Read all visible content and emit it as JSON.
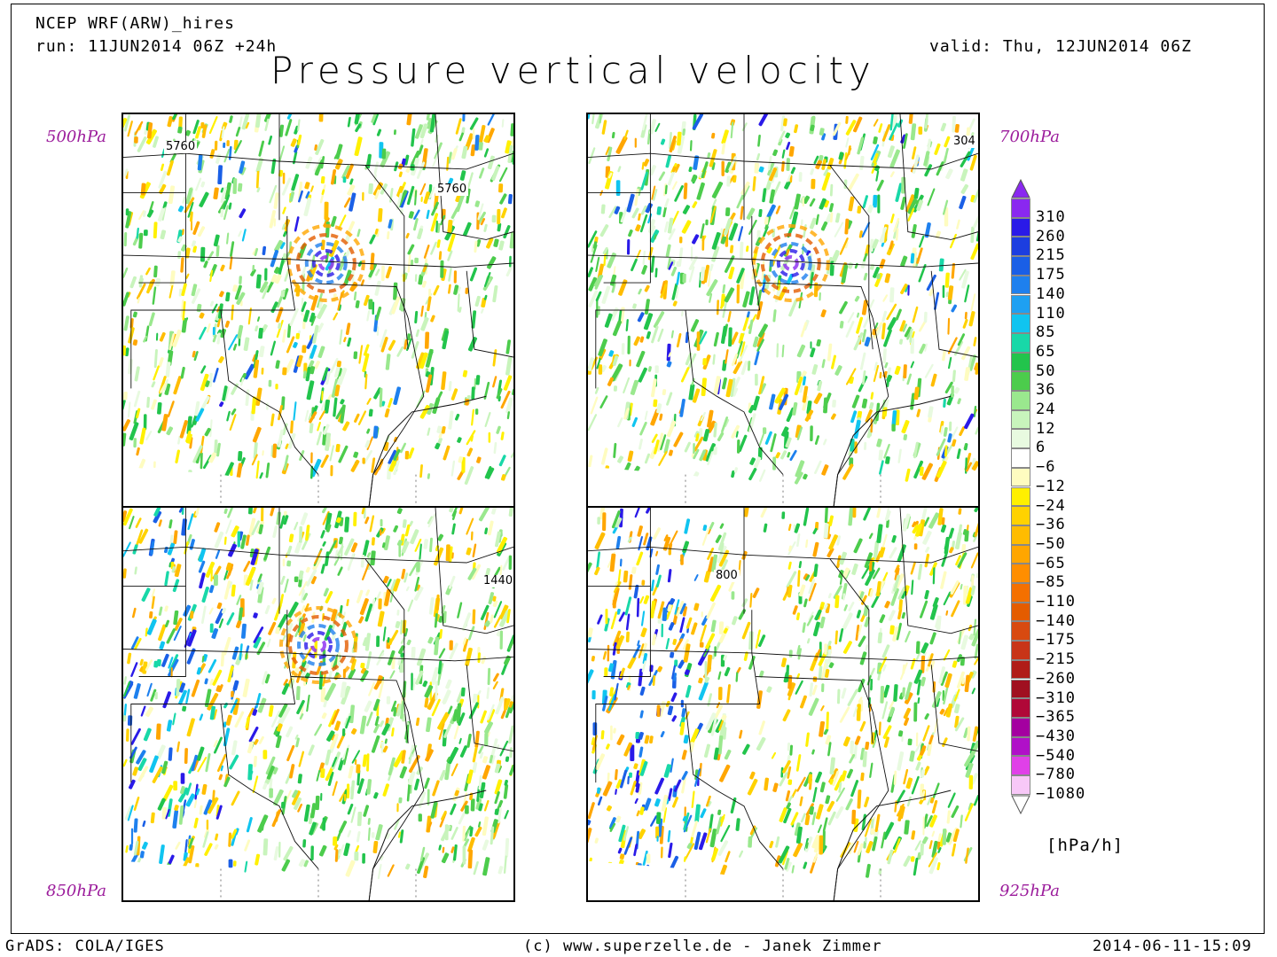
{
  "header": {
    "model": "NCEP WRF(ARW)_hires",
    "run": "run: 11JUN2014 06Z +24h",
    "valid": "valid: Thu, 12JUN2014 06Z",
    "title": "Pressure vertical velocity"
  },
  "panels": [
    {
      "level": "500hPa",
      "contour_labels": [
        "5760",
        "5760"
      ],
      "style": "upper"
    },
    {
      "level": "700hPa",
      "contour_labels": [
        "304"
      ],
      "style": "upper"
    },
    {
      "level": "850hPa",
      "contour_labels": [
        "1440"
      ],
      "style": "low"
    },
    {
      "level": "925hPa",
      "contour_labels": [
        "800"
      ],
      "style": "lowest"
    }
  ],
  "legend": {
    "unit": "[hPa/h]",
    "labels": [
      "310",
      "260",
      "215",
      "175",
      "140",
      "110",
      "85",
      "65",
      "50",
      "36",
      "24",
      "12",
      "6",
      "−6",
      "−12",
      "−24",
      "−36",
      "−50",
      "−65",
      "−85",
      "−110",
      "−140",
      "−175",
      "−215",
      "−260",
      "−310",
      "−365",
      "−430",
      "−540",
      "−780",
      "−1080"
    ],
    "colors": [
      "#8a28f0",
      "#2a1ae8",
      "#1c3ee0",
      "#1a5fe6",
      "#1e80ee",
      "#1ea0f2",
      "#10c4f0",
      "#18d8a8",
      "#22c44c",
      "#4ccc4c",
      "#9ae88e",
      "#c8f4bc",
      "#e8fae0",
      "#ffffff",
      "#fefcc0",
      "#fff000",
      "#ffd200",
      "#ffbc00",
      "#ffa600",
      "#ff8e00",
      "#f47000",
      "#e45c00",
      "#d84a10",
      "#c83418",
      "#b01c18",
      "#a01020",
      "#b00838",
      "#a400a0",
      "#b010c8",
      "#e040e8",
      "#f8c8f8"
    ],
    "top_arrow_color": "#8a28f0",
    "bottom_arrow_color": "#ffffff"
  },
  "footer": {
    "left": "GrADS: COLA/IGES",
    "center": "(c) www.superzelle.de - Janek Zimmer",
    "right": "2014-06-11-15:09"
  }
}
